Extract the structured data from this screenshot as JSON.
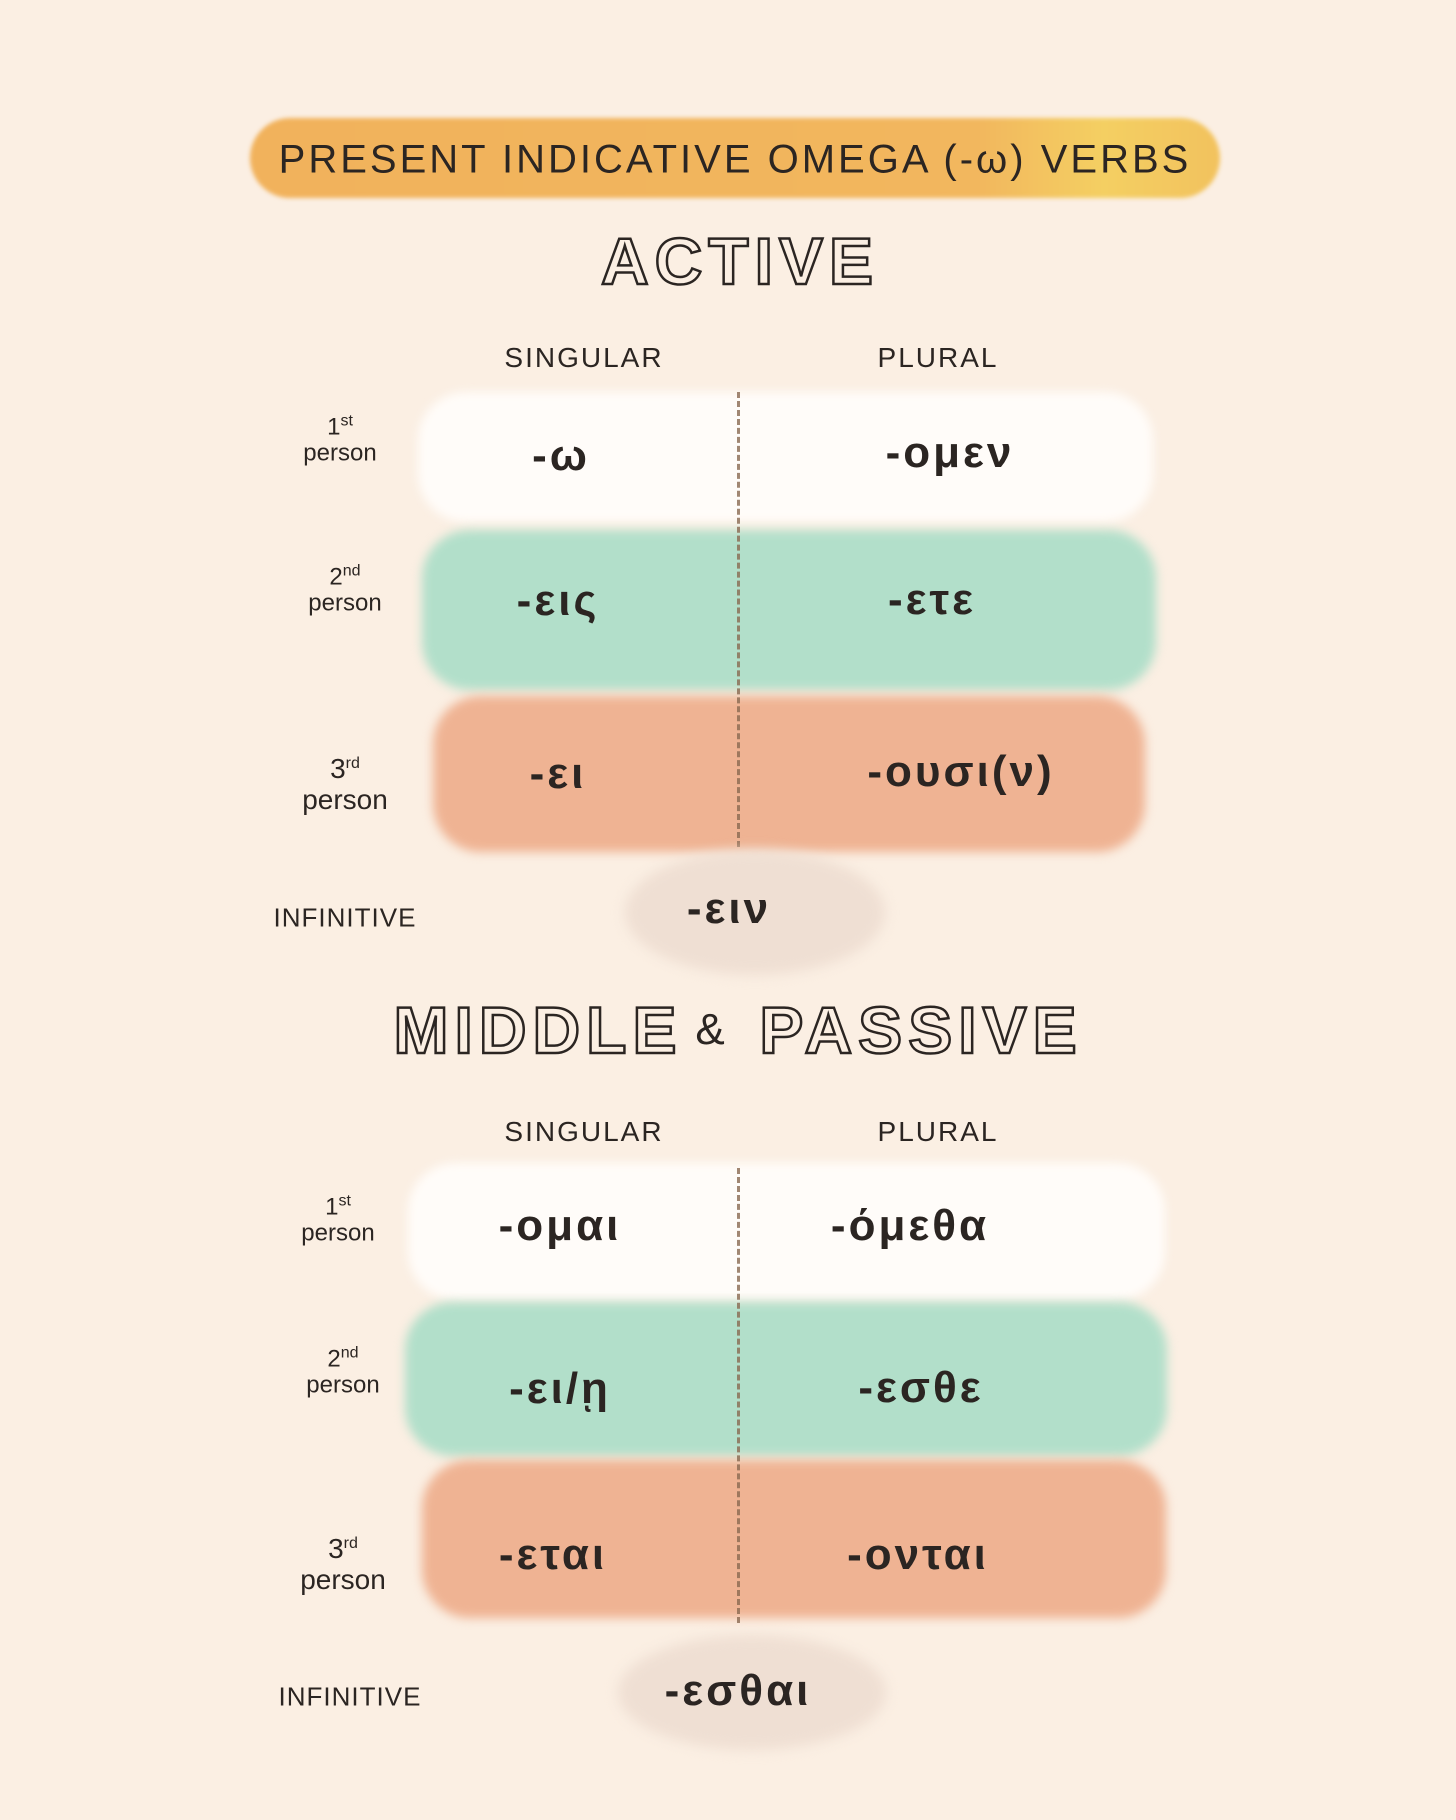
{
  "title": "PRESENT INDICATIVE OMEGA (-ω) VERBS",
  "colors": {
    "background": "#fbefe3",
    "title_bar": "#f1b25c",
    "first_person": "#fffcf9",
    "second_person": "#b2dfca",
    "third_person": "#efb393",
    "infinitive": "#efdfd3"
  },
  "sections": [
    {
      "heading": "ACTIVE",
      "singular_label": "SINGULAR",
      "plural_label": "PLURAL",
      "rows": [
        {
          "num": "1",
          "suffix": "st",
          "person": "person",
          "singular": "-ω",
          "plural": "-ομεν"
        },
        {
          "num": "2",
          "suffix": "nd",
          "person": "person",
          "singular": "-εις",
          "plural": "-ετε"
        },
        {
          "num": "3",
          "suffix": "rd",
          "person": "person",
          "singular": "-ει",
          "plural": "-ουσι(ν)"
        }
      ],
      "infinitive_label": "INFINITIVE",
      "infinitive": "-ειν"
    },
    {
      "heading_left": "MIDDLE",
      "heading_amp": "&",
      "heading_right": "PASSIVE",
      "singular_label": "SINGULAR",
      "plural_label": "PLURAL",
      "rows": [
        {
          "num": "1",
          "suffix": "st",
          "person": "person",
          "singular": "-ομαι",
          "plural": "-όμεθα"
        },
        {
          "num": "2",
          "suffix": "nd",
          "person": "person",
          "singular": "-ει/ῃ",
          "plural": "-εσθε"
        },
        {
          "num": "3",
          "suffix": "rd",
          "person": "person",
          "singular": "-εται",
          "plural": "-ονται"
        }
      ],
      "infinitive_label": "INFINITIVE",
      "infinitive": "-εσθαι"
    }
  ]
}
